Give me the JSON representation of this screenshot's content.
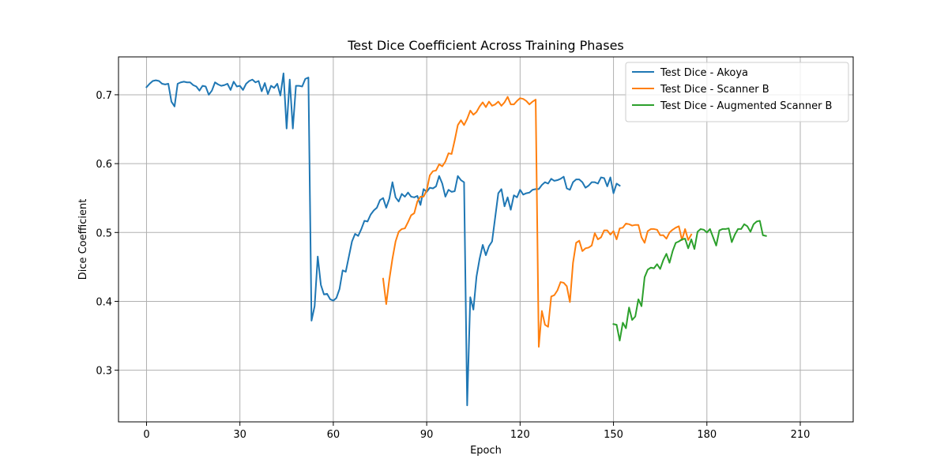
{
  "chart_data": {
    "type": "line",
    "title": "Test Dice Coefficient Across Training Phases",
    "xlabel": "Epoch",
    "ylabel": "Dice Coefficient",
    "xlim": [
      -9,
      227
    ],
    "ylim": [
      0.225,
      0.755
    ],
    "xticks": [
      0,
      30,
      60,
      90,
      120,
      150,
      180,
      210
    ],
    "yticks": [
      0.3,
      0.4,
      0.5,
      0.6,
      0.7
    ],
    "ytick_labels": [
      "0.3",
      "0.4",
      "0.5",
      "0.6",
      "0.7"
    ],
    "grid": true,
    "legend_position": "upper right",
    "series": [
      {
        "name": "Test Dice - Akoya",
        "color": "#1f77b4",
        "x_start": 0,
        "values": [
          0.711,
          0.716,
          0.72,
          0.721,
          0.72,
          0.716,
          0.715,
          0.716,
          0.69,
          0.683,
          0.716,
          0.718,
          0.719,
          0.718,
          0.718,
          0.714,
          0.712,
          0.706,
          0.713,
          0.712,
          0.7,
          0.706,
          0.718,
          0.715,
          0.713,
          0.714,
          0.716,
          0.707,
          0.719,
          0.712,
          0.713,
          0.707,
          0.716,
          0.72,
          0.722,
          0.718,
          0.72,
          0.705,
          0.717,
          0.701,
          0.713,
          0.71,
          0.716,
          0.699,
          0.731,
          0.651,
          0.722,
          0.651,
          0.713,
          0.713,
          0.712,
          0.723,
          0.725,
          0.372,
          0.393,
          0.465,
          0.424,
          0.41,
          0.411,
          0.403,
          0.401,
          0.405,
          0.418,
          0.445,
          0.443,
          0.465,
          0.487,
          0.498,
          0.495,
          0.505,
          0.517,
          0.516,
          0.526,
          0.532,
          0.536,
          0.547,
          0.55,
          0.536,
          0.549,
          0.573,
          0.551,
          0.545,
          0.556,
          0.552,
          0.558,
          0.552,
          0.551,
          0.553,
          0.54,
          0.563,
          0.559,
          0.565,
          0.564,
          0.567,
          0.582,
          0.571,
          0.552,
          0.562,
          0.559,
          0.56,
          0.582,
          0.576,
          0.573,
          0.249,
          0.406,
          0.388,
          0.436,
          0.462,
          0.482,
          0.467,
          0.48,
          0.487,
          0.522,
          0.557,
          0.563,
          0.538,
          0.551,
          0.533,
          0.554,
          0.551,
          0.562,
          0.555,
          0.557,
          0.558,
          0.562,
          0.563,
          0.563,
          0.569,
          0.573,
          0.571,
          0.578,
          0.575,
          0.576,
          0.578,
          0.581,
          0.564,
          0.562,
          0.573,
          0.577,
          0.577,
          0.573,
          0.565,
          0.568,
          0.573,
          0.573,
          0.571,
          0.58,
          0.579,
          0.567,
          0.58,
          0.557,
          0.571,
          0.568
        ]
      },
      {
        "name": "Test Dice - Scanner B",
        "color": "#ff7f0e",
        "x_start": 76,
        "values": [
          0.433,
          0.396,
          0.432,
          0.462,
          0.487,
          0.501,
          0.505,
          0.506,
          0.515,
          0.525,
          0.528,
          0.545,
          0.552,
          0.552,
          0.561,
          0.583,
          0.589,
          0.59,
          0.599,
          0.596,
          0.603,
          0.615,
          0.614,
          0.634,
          0.656,
          0.663,
          0.656,
          0.665,
          0.677,
          0.671,
          0.675,
          0.683,
          0.689,
          0.682,
          0.69,
          0.684,
          0.686,
          0.69,
          0.684,
          0.689,
          0.697,
          0.686,
          0.686,
          0.691,
          0.695,
          0.694,
          0.691,
          0.686,
          0.69,
          0.693,
          0.334,
          0.386,
          0.366,
          0.363,
          0.407,
          0.409,
          0.416,
          0.428,
          0.427,
          0.422,
          0.399,
          0.456,
          0.485,
          0.488,
          0.473,
          0.477,
          0.478,
          0.481,
          0.499,
          0.49,
          0.493,
          0.503,
          0.503,
          0.497,
          0.502,
          0.49,
          0.506,
          0.507,
          0.513,
          0.512,
          0.51,
          0.511,
          0.511,
          0.493,
          0.485,
          0.502,
          0.505,
          0.505,
          0.504,
          0.496,
          0.496,
          0.491,
          0.5,
          0.504,
          0.507,
          0.509,
          0.489,
          0.505,
          0.489,
          0.497
        ]
      },
      {
        "name": "Test Dice - Augmented Scanner B",
        "color": "#2ca02c",
        "x_start": 150,
        "values": [
          0.367,
          0.366,
          0.343,
          0.369,
          0.361,
          0.391,
          0.373,
          0.378,
          0.403,
          0.393,
          0.435,
          0.446,
          0.449,
          0.448,
          0.454,
          0.447,
          0.46,
          0.469,
          0.456,
          0.473,
          0.485,
          0.487,
          0.49,
          0.491,
          0.477,
          0.49,
          0.476,
          0.501,
          0.505,
          0.504,
          0.5,
          0.505,
          0.493,
          0.481,
          0.503,
          0.505,
          0.505,
          0.506,
          0.486,
          0.497,
          0.505,
          0.505,
          0.512,
          0.509,
          0.501,
          0.512,
          0.516,
          0.517,
          0.496,
          0.495
        ]
      }
    ]
  }
}
